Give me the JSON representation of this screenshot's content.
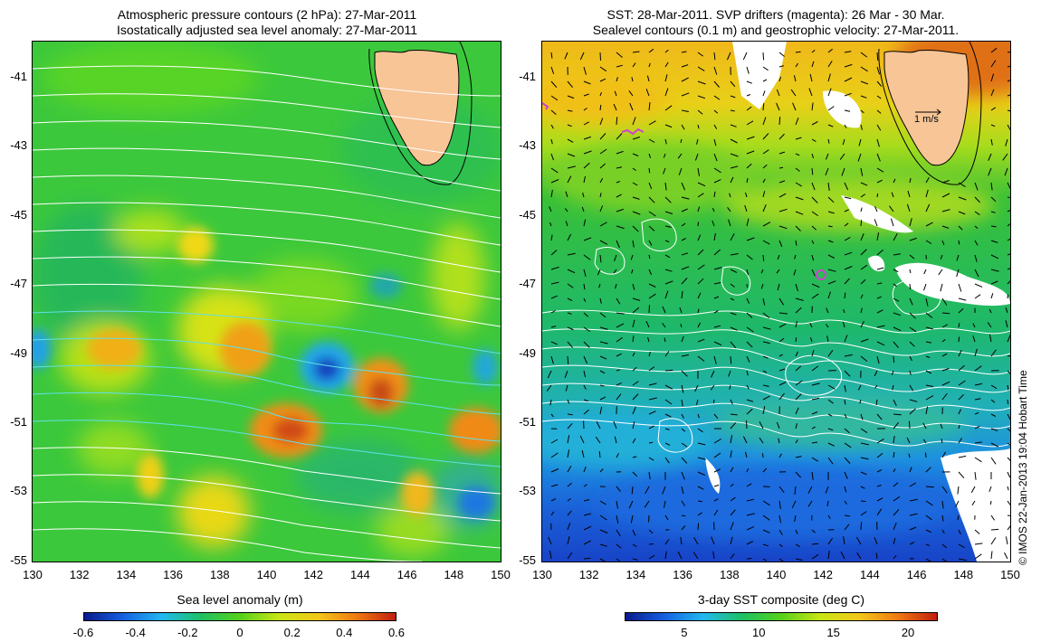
{
  "left_panel": {
    "title_line1": "Atmospheric pressure contours (2 hPa): 27-Mar-2011",
    "title_line2": "Isostatically adjusted sea level anomaly: 27-Mar-2011",
    "y_ticks": [
      "-41",
      "-43",
      "-45",
      "-47",
      "-49",
      "-51",
      "-53",
      "-55"
    ],
    "x_ticks": [
      "130",
      "132",
      "134",
      "136",
      "138",
      "140",
      "142",
      "144",
      "146",
      "148",
      "150"
    ],
    "colorbar": {
      "title": "Sea level anomaly (m)",
      "ticks": [
        "-0.6",
        "-0.4",
        "-0.2",
        "0",
        "0.2",
        "0.4",
        "0.6"
      ],
      "range": [
        -0.6,
        0.6
      ],
      "colors": [
        "#0a1a8c",
        "#1660e0",
        "#22b8f0",
        "#1ec064",
        "#56d01c",
        "#c8e614",
        "#f2c81a",
        "#f07a12",
        "#c01e10"
      ]
    }
  },
  "right_panel": {
    "title_line1": "SST: 28-Mar-2011. SVP drifters (magenta): 26 Mar - 30 Mar.",
    "title_line2": "Sealevel contours (0.1 m) and geostrophic velocity: 27-Mar-2011.",
    "y_ticks": [
      "-41",
      "-43",
      "-45",
      "-47",
      "-49",
      "-51",
      "-53",
      "-55"
    ],
    "x_ticks": [
      "130",
      "132",
      "134",
      "136",
      "138",
      "140",
      "142",
      "144",
      "146",
      "148",
      "150"
    ],
    "velocity_scale_label": "1 m/s",
    "colorbar": {
      "title": "3-day SST composite (deg C)",
      "ticks": [
        "5",
        "10",
        "15",
        "20"
      ],
      "range": [
        1,
        22
      ],
      "colors": [
        "#0a1a8c",
        "#1660e0",
        "#22b8f0",
        "#1ec064",
        "#56d01c",
        "#c8e614",
        "#f2c81a",
        "#f07a12",
        "#c01e10"
      ]
    }
  },
  "credit": "© IMOS 22-Jan-2013 19:04 Hobart Time",
  "colors": {
    "land": "#f7c596",
    "contour_pressure": "#ffffff",
    "contour_pressure_low": "#60e0e8",
    "drifter": "#d040d0"
  }
}
